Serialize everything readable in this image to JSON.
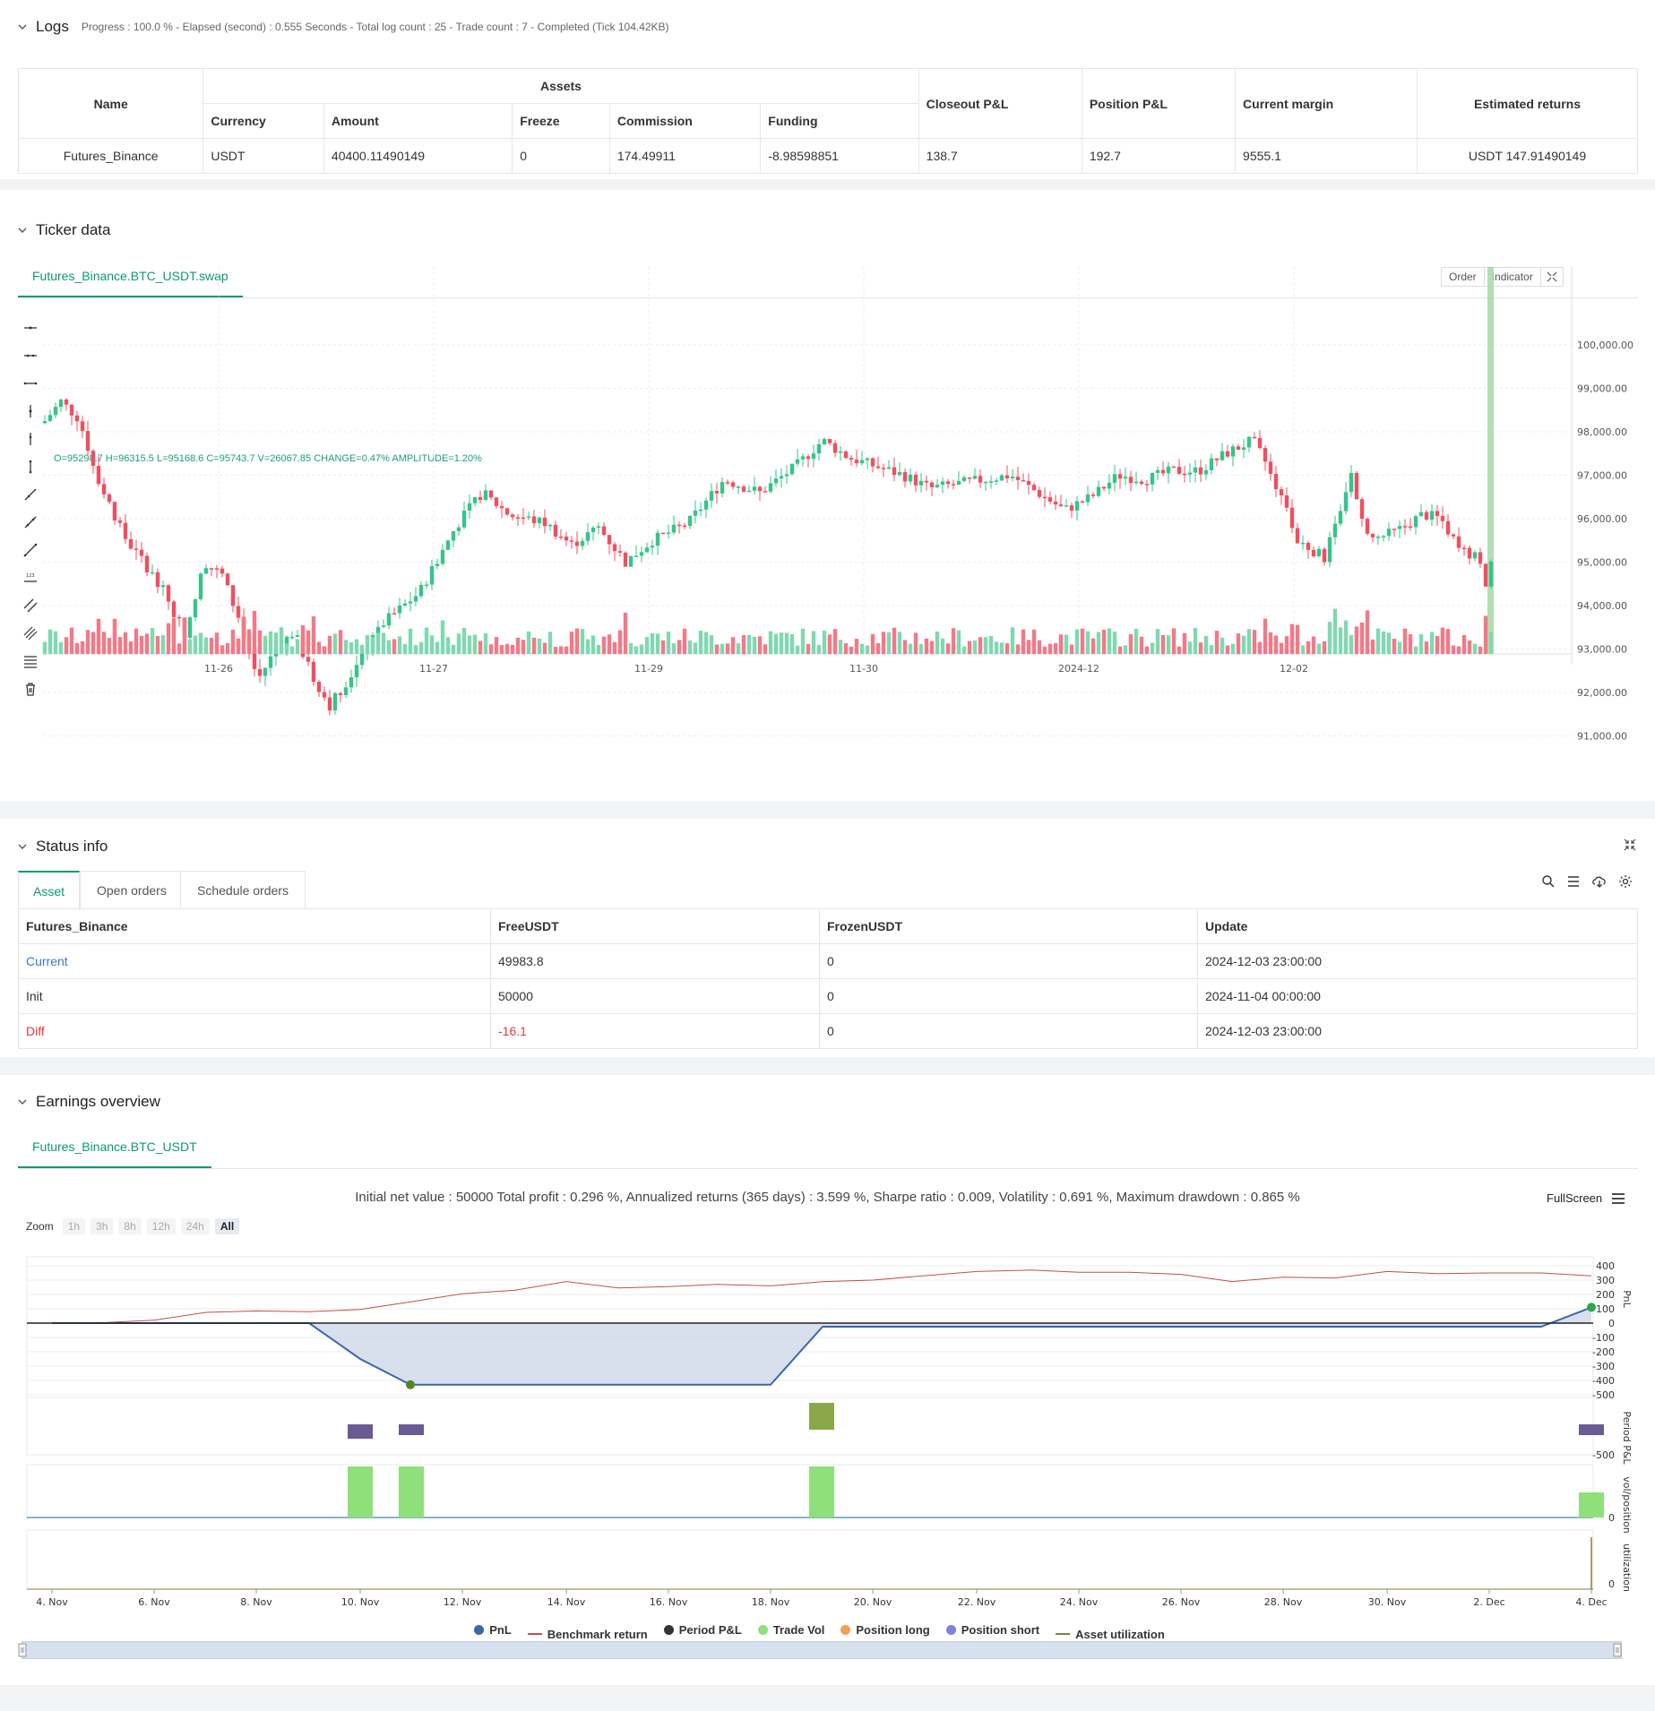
{
  "logs": {
    "title": "Logs",
    "summary": "Progress : 100.0 % - Elapsed (second) : 0.555  Seconds - Total log count : 25 - Trade count : 7 - Completed (Tick 104.42KB)",
    "headers": {
      "name": "Name",
      "assets": "Assets",
      "currency": "Currency",
      "amount": "Amount",
      "freeze": "Freeze",
      "commission": "Commission",
      "funding": "Funding",
      "closeout": "Closeout P&L",
      "position": "Position P&L",
      "margin": "Current margin",
      "returns": "Estimated returns"
    },
    "row": {
      "name": "Futures_Binance",
      "currency": "USDT",
      "amount": "40400.11490149",
      "freeze": "0",
      "commission": "174.49911",
      "funding": "-8.98598851",
      "closeout": "138.7",
      "position": "192.7",
      "margin": "9555.1",
      "returns": "USDT 147.91490149"
    }
  },
  "ticker": {
    "title": "Ticker data",
    "tab": "Futures_Binance.BTC_USDT.swap",
    "ohlc": "O=95298.7 H=96315.5 L=95168.6 C=95743.7 V=26067.85 CHANGE=0.47% AMPLITUDE=1.20%",
    "order_btn": "Order",
    "indicator_btn": "Indicator",
    "price_ticks": [
      "100,000.00",
      "99,000.00",
      "98,000.00",
      "97,000.00",
      "96,000.00",
      "95,000.00",
      "94,000.00",
      "93,000.00",
      "92,000.00",
      "91,000.00"
    ],
    "date_ticks": [
      "11-26",
      "11-27",
      "11-29",
      "11-30",
      "2024-12",
      "12-02"
    ]
  },
  "status": {
    "title": "Status info",
    "tabs": [
      "Asset",
      "Open orders",
      "Schedule orders"
    ],
    "headers": [
      "Futures_Binance",
      "FreeUSDT",
      "FrozenUSDT",
      "Update"
    ],
    "rows": [
      {
        "label": "Current",
        "free": "49983.8",
        "frozen": "0",
        "update": "2024-12-03 23:00:00"
      },
      {
        "label": "Init",
        "free": "50000",
        "frozen": "0",
        "update": "2024-11-04 00:00:00"
      },
      {
        "label": "Diff",
        "free": "-16.1",
        "frozen": "0",
        "update": "2024-12-03 23:00:00"
      }
    ]
  },
  "earnings": {
    "title": "Earnings overview",
    "tab": "Futures_Binance.BTC_USDT",
    "summary": "Initial net value : 50000  Total profit : 0.296 %, Annualized returns (365 days) : 3.599 %, Sharpe ratio : 0.009, Volatility : 0.691 %, Maximum drawdown : 0.865 %",
    "fullscreen": "FullScreen",
    "zoom_label": "Zoom",
    "zoom_options": [
      "1h",
      "3h",
      "8h",
      "12h",
      "24h",
      "All"
    ],
    "pnl_ticks": [
      "400",
      "300",
      "200",
      "100",
      "0",
      "-100",
      "-200",
      "-300",
      "-400",
      "-500"
    ],
    "axis_labels": [
      "PnL",
      "Period P&L",
      "vol/position",
      "utilization"
    ],
    "period_tick": "-500",
    "vol_tick": "0",
    "util_tick": "0",
    "x_ticks": [
      "4. Nov",
      "6. Nov",
      "8. Nov",
      "10. Nov",
      "12. Nov",
      "14. Nov",
      "16. Nov",
      "18. Nov",
      "20. Nov",
      "22. Nov",
      "24. Nov",
      "26. Nov",
      "28. Nov",
      "30. Nov",
      "2. Dec",
      "4. Dec"
    ],
    "legend": [
      {
        "label": "PnL",
        "color": "#3b67a8",
        "kind": "dot"
      },
      {
        "label": "Benchmark return",
        "color": "#c0504d",
        "kind": "line"
      },
      {
        "label": "Period P&L",
        "color": "#333333",
        "kind": "dot"
      },
      {
        "label": "Trade Vol",
        "color": "#8fe07a",
        "kind": "dot"
      },
      {
        "label": "Position long",
        "color": "#f0a050",
        "kind": "dot"
      },
      {
        "label": "Position short",
        "color": "#8080e0",
        "kind": "dot"
      },
      {
        "label": "Asset utilization",
        "color": "#8a7a3a",
        "kind": "line"
      }
    ]
  }
}
